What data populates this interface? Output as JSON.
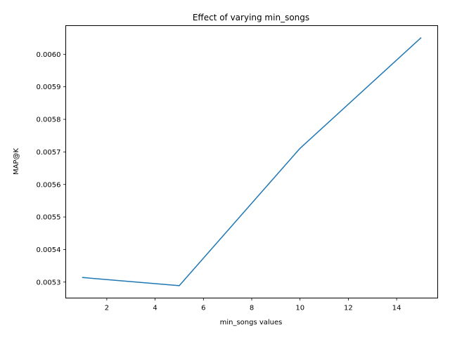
{
  "chart_data": {
    "type": "line",
    "title": "Effect of varying min_songs",
    "xlabel": "min_songs values",
    "ylabel": "MAP@K",
    "x": [
      1,
      5,
      10,
      15
    ],
    "series": [
      {
        "values": [
          0.005314,
          0.005289,
          0.005711,
          0.00605
        ]
      }
    ],
    "xlim": [
      0.3,
      15.7
    ],
    "ylim": [
      0.005251,
      0.006088
    ],
    "xticks": [
      2,
      4,
      6,
      8,
      10,
      12,
      14
    ],
    "yticks": [
      0.0053,
      0.0054,
      0.0055,
      0.0056,
      0.0057,
      0.0058,
      0.0059,
      0.006
    ],
    "ytick_labels": [
      "0.0053",
      "0.0054",
      "0.0055",
      "0.0056",
      "0.0057",
      "0.0058",
      "0.0059",
      "0.0060"
    ],
    "grid": false,
    "line_color": "#1f77b4"
  }
}
